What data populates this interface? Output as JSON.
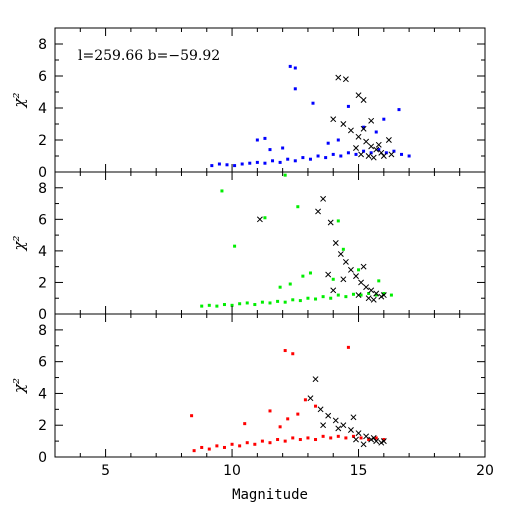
{
  "chart_data": {
    "type": "scatter",
    "xlabel": "Magnitude",
    "xlim": [
      3,
      20
    ],
    "x_ticks": [
      5,
      10,
      15,
      20
    ],
    "x_tick_labels": [
      "5",
      "10",
      "15",
      "20"
    ],
    "annotation": "l=259.66  b=−59.92",
    "panels": [
      {
        "name": "top",
        "ylabel": "χ²",
        "ylim": [
          0,
          9
        ],
        "y_ticks": [
          0,
          2,
          4,
          6,
          8
        ],
        "y_tick_labels": [
          "0",
          "2",
          "4",
          "6",
          "8"
        ],
        "series": [
          {
            "color": "#0000ff",
            "marker": "square",
            "points": [
              [
                9.2,
                0.4
              ],
              [
                9.5,
                0.5
              ],
              [
                9.8,
                0.45
              ],
              [
                10.1,
                0.4
              ],
              [
                10.4,
                0.5
              ],
              [
                10.7,
                0.55
              ],
              [
                11,
                0.6
              ],
              [
                11.3,
                0.55
              ],
              [
                11.6,
                0.7
              ],
              [
                11.9,
                0.6
              ],
              [
                12.2,
                0.8
              ],
              [
                12.5,
                0.7
              ],
              [
                12.8,
                0.9
              ],
              [
                13.1,
                0.8
              ],
              [
                13.4,
                1.0
              ],
              [
                13.7,
                0.9
              ],
              [
                14,
                1.1
              ],
              [
                14.3,
                1.0
              ],
              [
                14.6,
                1.2
              ],
              [
                14.9,
                1.1
              ],
              [
                15.2,
                1.3
              ],
              [
                15.5,
                1.2
              ],
              [
                15.8,
                1.4
              ],
              [
                16.1,
                1.2
              ],
              [
                16.4,
                1.3
              ],
              [
                16.7,
                1.1
              ],
              [
                17,
                1.0
              ],
              [
                11.5,
                1.4
              ],
              [
                12,
                1.5
              ],
              [
                12.3,
                6.6
              ],
              [
                12.5,
                5.2
              ],
              [
                12.5,
                6.5
              ],
              [
                13.2,
                4.3
              ],
              [
                14.6,
                4.1
              ],
              [
                15.2,
                2.8
              ],
              [
                16,
                3.3
              ],
              [
                16.6,
                3.9
              ],
              [
                11,
                2.0
              ],
              [
                11.3,
                2.1
              ],
              [
                15.7,
                2.5
              ],
              [
                14.2,
                2.0
              ],
              [
                13.8,
                1.8
              ]
            ]
          },
          {
            "color": "#000000",
            "marker": "cross",
            "points": [
              [
                14.2,
                5.9
              ],
              [
                14.5,
                5.8
              ],
              [
                15.0,
                4.8
              ],
              [
                15.2,
                4.5
              ],
              [
                14.0,
                3.3
              ],
              [
                14.4,
                3.0
              ],
              [
                14.7,
                2.6
              ],
              [
                15.0,
                2.2
              ],
              [
                15.3,
                1.9
              ],
              [
                15.5,
                1.6
              ],
              [
                15.7,
                1.4
              ],
              [
                15.9,
                1.2
              ],
              [
                15.4,
                1.0
              ],
              [
                15.1,
                1.1
              ],
              [
                15.6,
                0.9
              ],
              [
                16.0,
                1.0
              ],
              [
                16.3,
                1.1
              ],
              [
                15.8,
                1.7
              ],
              [
                14.9,
                1.5
              ],
              [
                15.2,
                2.7
              ],
              [
                16.2,
                2.0
              ],
              [
                15.5,
                3.2
              ]
            ]
          }
        ]
      },
      {
        "name": "middle",
        "ylabel": "χ²",
        "ylim": [
          0,
          9
        ],
        "y_ticks": [
          0,
          2,
          4,
          6,
          8
        ],
        "y_tick_labels": [
          "0",
          "2",
          "4",
          "6",
          "8"
        ],
        "series": [
          {
            "color": "#00ee00",
            "marker": "square",
            "points": [
              [
                8.8,
                0.5
              ],
              [
                9.1,
                0.55
              ],
              [
                9.4,
                0.5
              ],
              [
                9.7,
                0.6
              ],
              [
                10,
                0.55
              ],
              [
                10.3,
                0.65
              ],
              [
                10.6,
                0.7
              ],
              [
                10.9,
                0.6
              ],
              [
                11.2,
                0.75
              ],
              [
                11.5,
                0.7
              ],
              [
                11.8,
                0.8
              ],
              [
                12.1,
                0.75
              ],
              [
                12.4,
                0.9
              ],
              [
                12.7,
                0.85
              ],
              [
                13,
                1.0
              ],
              [
                13.3,
                0.95
              ],
              [
                13.6,
                1.1
              ],
              [
                13.9,
                1.0
              ],
              [
                14.2,
                1.2
              ],
              [
                14.5,
                1.1
              ],
              [
                14.8,
                1.25
              ],
              [
                15.1,
                1.2
              ],
              [
                15.4,
                1.3
              ],
              [
                15.7,
                1.2
              ],
              [
                16,
                1.3
              ],
              [
                16.3,
                1.2
              ],
              [
                9.6,
                7.8
              ],
              [
                12.1,
                8.8
              ],
              [
                12.6,
                6.8
              ],
              [
                10.1,
                4.3
              ],
              [
                11.3,
                6.1
              ],
              [
                12.8,
                2.4
              ],
              [
                13.1,
                2.6
              ],
              [
                14.2,
                5.9
              ],
              [
                14.4,
                4.1
              ],
              [
                15,
                2.8
              ],
              [
                12.3,
                1.9
              ],
              [
                11.9,
                1.7
              ],
              [
                15.8,
                2.1
              ],
              [
                14,
                2.2
              ]
            ]
          },
          {
            "color": "#000000",
            "marker": "cross",
            "points": [
              [
                11.1,
                6.0
              ],
              [
                13.6,
                7.3
              ],
              [
                13.4,
                6.5
              ],
              [
                13.9,
                5.8
              ],
              [
                14.1,
                4.5
              ],
              [
                14.3,
                3.8
              ],
              [
                14.5,
                3.3
              ],
              [
                14.7,
                2.8
              ],
              [
                14.9,
                2.4
              ],
              [
                15.1,
                2.0
              ],
              [
                15.3,
                1.7
              ],
              [
                15.5,
                1.5
              ],
              [
                15.7,
                1.3
              ],
              [
                15.9,
                1.1
              ],
              [
                15.4,
                1.0
              ],
              [
                15.0,
                1.2
              ],
              [
                15.6,
                0.9
              ],
              [
                16.0,
                1.2
              ],
              [
                13.8,
                2.5
              ],
              [
                14.4,
                2.2
              ],
              [
                15.2,
                3.0
              ],
              [
                14.0,
                1.5
              ]
            ]
          }
        ]
      },
      {
        "name": "bottom",
        "ylabel": "χ²",
        "ylim": [
          0,
          9
        ],
        "y_ticks": [
          0,
          2,
          4,
          6,
          8
        ],
        "y_tick_labels": [
          "0",
          "2",
          "4",
          "6",
          "8"
        ],
        "series": [
          {
            "color": "#ff0000",
            "marker": "square",
            "points": [
              [
                8.5,
                0.4
              ],
              [
                8.8,
                0.6
              ],
              [
                9.1,
                0.5
              ],
              [
                9.4,
                0.7
              ],
              [
                9.7,
                0.6
              ],
              [
                10,
                0.8
              ],
              [
                10.3,
                0.7
              ],
              [
                10.6,
                0.9
              ],
              [
                10.9,
                0.8
              ],
              [
                11.2,
                1.0
              ],
              [
                11.5,
                0.9
              ],
              [
                11.8,
                1.1
              ],
              [
                12.1,
                1.0
              ],
              [
                12.4,
                1.2
              ],
              [
                12.7,
                1.1
              ],
              [
                13,
                1.2
              ],
              [
                13.3,
                1.1
              ],
              [
                13.6,
                1.3
              ],
              [
                13.9,
                1.2
              ],
              [
                14.2,
                1.3
              ],
              [
                14.5,
                1.2
              ],
              [
                14.8,
                1.3
              ],
              [
                15.1,
                1.2
              ],
              [
                15.4,
                1.1
              ],
              [
                15.7,
                1.2
              ],
              [
                16,
                1.1
              ],
              [
                8.4,
                2.6
              ],
              [
                12.1,
                6.7
              ],
              [
                12.4,
                6.5
              ],
              [
                14.6,
                6.9
              ],
              [
                12.9,
                3.6
              ],
              [
                11.5,
                2.9
              ],
              [
                12.6,
                2.7
              ],
              [
                13.3,
                3.2
              ],
              [
                12.2,
                2.4
              ],
              [
                10.5,
                2.1
              ],
              [
                11.9,
                1.9
              ]
            ]
          },
          {
            "color": "#000000",
            "marker": "cross",
            "points": [
              [
                13.3,
                4.9
              ],
              [
                13.1,
                3.7
              ],
              [
                13.5,
                3.0
              ],
              [
                13.8,
                2.6
              ],
              [
                14.1,
                2.3
              ],
              [
                14.4,
                2.0
              ],
              [
                14.7,
                1.7
              ],
              [
                15,
                1.5
              ],
              [
                15.3,
                1.3
              ],
              [
                15.5,
                1.1
              ],
              [
                15.7,
                1.0
              ],
              [
                15.9,
                0.9
              ],
              [
                15.2,
                0.8
              ],
              [
                14.9,
                1.1
              ],
              [
                15.6,
                1.2
              ],
              [
                16,
                1.0
              ],
              [
                14.2,
                1.8
              ],
              [
                13.6,
                2.0
              ],
              [
                14.8,
                2.5
              ]
            ]
          }
        ]
      }
    ]
  }
}
